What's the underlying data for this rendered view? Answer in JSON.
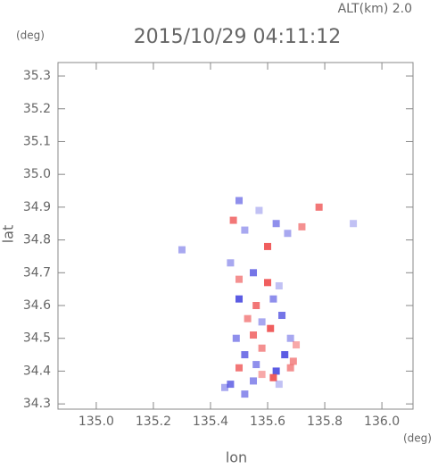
{
  "chart_data": {
    "type": "scatter",
    "title": "2015/10/29 04:11:12",
    "subtitle": "ALT(km) 2.0",
    "y_unit": "(deg)",
    "x_unit": "(deg)",
    "xlabel": "lon",
    "ylabel": "lat",
    "xlim": [
      134.866,
      136.109
    ],
    "ylim": [
      34.284,
      35.341
    ],
    "xticks": [
      {
        "value": 135.0,
        "label": "135.0"
      },
      135.2,
      135.4,
      135.6,
      135.8,
      {
        "value": 136.0,
        "label": "136.0"
      }
    ],
    "yticks": [
      35.3,
      35.2,
      35.1,
      {
        "value": 35.0,
        "label": "35.0"
      },
      34.9,
      34.8,
      34.7,
      34.6,
      34.5,
      34.4,
      34.3
    ],
    "colors": {
      "negative": "#4a4ae0",
      "positive": "#ee4c4c"
    },
    "x": [
      135.5,
      135.48,
      135.52,
      135.57,
      135.6,
      135.63,
      135.67,
      135.72,
      135.78,
      135.9,
      135.3,
      135.47,
      135.5,
      135.55,
      135.6,
      135.64,
      135.5,
      135.56,
      135.62,
      135.53,
      135.58,
      135.65,
      135.49,
      135.55,
      135.61,
      135.68,
      135.52,
      135.58,
      135.66,
      135.7,
      135.5,
      135.56,
      135.63,
      135.69,
      135.47,
      135.55,
      135.62,
      135.68,
      135.45,
      135.52,
      135.58,
      135.64
    ],
    "y": [
      34.92,
      34.86,
      34.83,
      34.89,
      34.78,
      34.85,
      34.82,
      34.84,
      34.9,
      34.85,
      34.77,
      34.73,
      34.68,
      34.7,
      34.67,
      34.66,
      34.62,
      34.6,
      34.62,
      34.56,
      34.55,
      34.57,
      34.5,
      34.51,
      34.53,
      34.5,
      34.45,
      34.47,
      34.45,
      34.48,
      34.41,
      34.42,
      34.4,
      34.43,
      34.36,
      34.37,
      34.38,
      34.41,
      34.35,
      34.33,
      34.39,
      34.36
    ],
    "values": [
      -3,
      4,
      -2,
      -1,
      5,
      -3,
      -2,
      3,
      4,
      -1,
      -2,
      -2,
      3,
      -4,
      5,
      -1,
      -5,
      4,
      -3,
      3,
      -2,
      -4,
      -3,
      4,
      5,
      -2,
      -4,
      3,
      -5,
      2,
      4,
      -3,
      -5,
      3,
      -4,
      -3,
      5,
      3,
      -2,
      -3,
      2,
      -1
    ],
    "vlim": [
      -5,
      5
    ]
  }
}
